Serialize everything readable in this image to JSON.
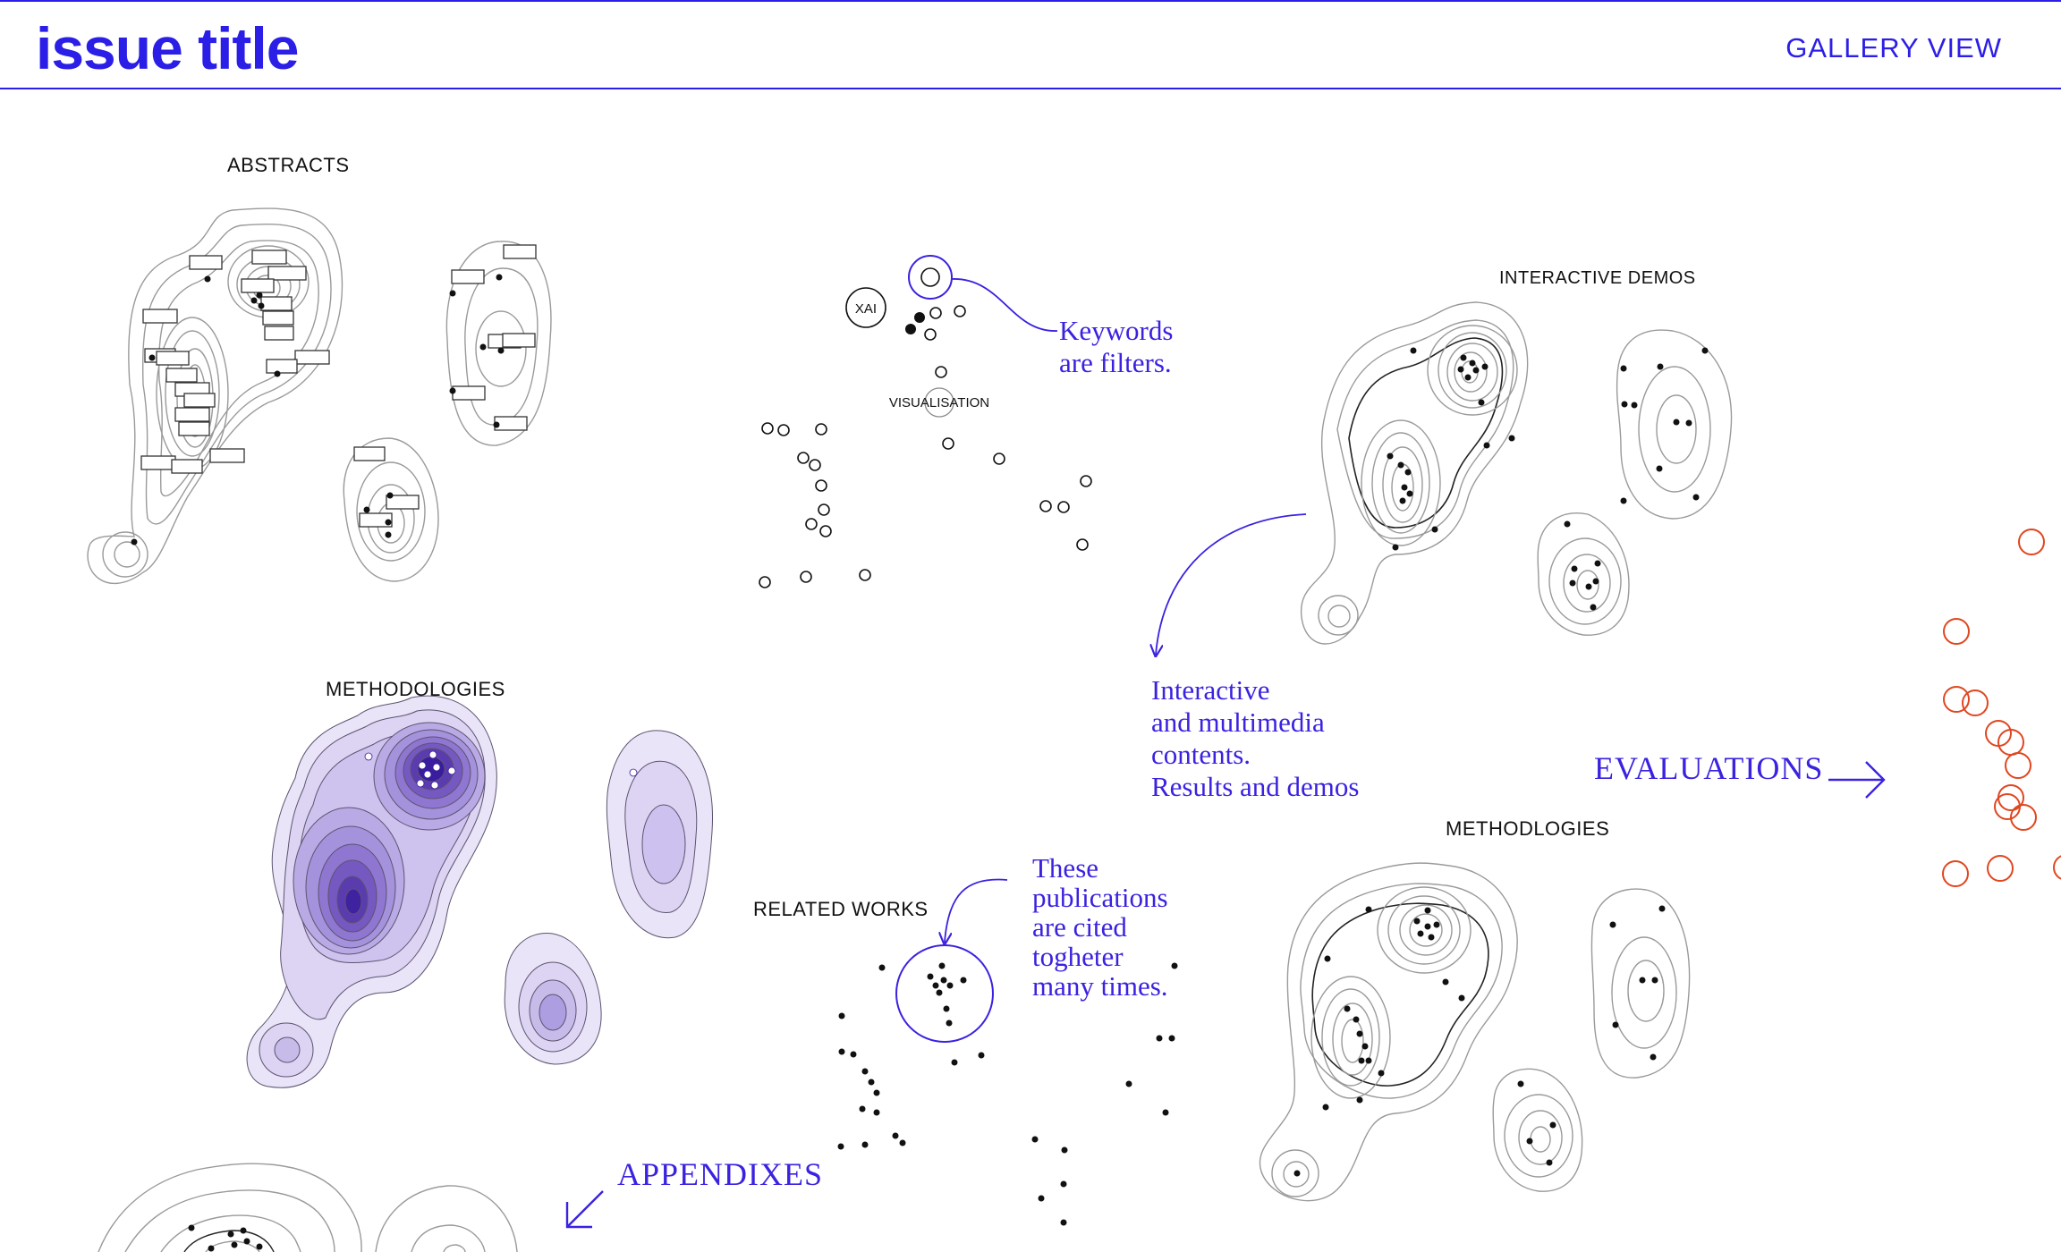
{
  "header": {
    "title": "issue title",
    "nav_gallery": "GALLERY VIEW"
  },
  "sections": {
    "abstracts": "ABSTRACTS",
    "interactive_demos": "INTERACTIVE DEMOS",
    "methodologies": "METHODOLOGIES",
    "methodologies_alt": "METHODLOGIES",
    "related_works": "RELATED WORKS",
    "evaluations": "EVALUATIONS",
    "appendixes": "APPENDIXES"
  },
  "keywords": {
    "xai": "XAI",
    "visualisation": "VISUALISATION"
  },
  "annotations": {
    "keywords_filters": [
      "Keywords",
      "are filters."
    ],
    "interactive_contents": [
      "Interactive",
      "and multimedia",
      "contents.",
      "Results and demos"
    ],
    "cited_publications": [
      "These",
      "publications",
      "are cited",
      "togheter",
      "many times."
    ]
  },
  "colors": {
    "accent": "#2b1ee6",
    "evaluation_orange": "#e0461f",
    "ink": "#111111",
    "contour": "#9a9a9a",
    "density_dark": "#3a1d9e",
    "density_light": "#e7e2f7"
  }
}
